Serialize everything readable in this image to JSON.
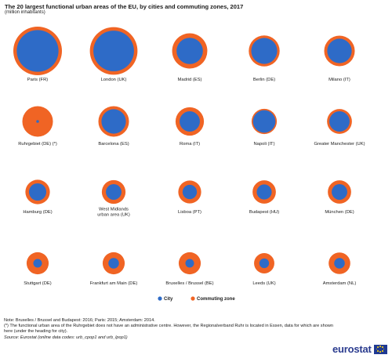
{
  "title": "The 20 largest functional urban areas of the EU, by cities and commuting  zones, 2017",
  "subtitle": "(million inhabitants)",
  "colors": {
    "city": "#2E6BC7",
    "commuting": "#F06424"
  },
  "chart_data": {
    "type": "bubble",
    "title": "The 20 largest functional urban areas of the EU, by cities and commuting  zones, 2017",
    "unit": "million inhabitants",
    "legend": [
      "City",
      "Commuting zone"
    ],
    "legend_position": "bottom",
    "grid": false,
    "areas": [
      {
        "name": "Paris (FR)",
        "total": 12.6,
        "city": 9.3
      },
      {
        "name": "London (UK)",
        "total": 12.1,
        "city": 8.8
      },
      {
        "name": "Madrid (ES)",
        "total": 6.6,
        "city": 3.7
      },
      {
        "name": "Berlin (DE)",
        "total": 5.1,
        "city": 3.6
      },
      {
        "name": "Milano (IT)",
        "total": 5.0,
        "city": 3.2
      },
      {
        "name": "Ruhrgebiet (DE) (*)",
        "total": 5.0,
        "city": 0.04
      },
      {
        "name": "Barcelona (ES)",
        "total": 5.0,
        "city": 3.2
      },
      {
        "name": "Roma (IT)",
        "total": 4.3,
        "city": 2.2
      },
      {
        "name": "Napoli (IT)",
        "total": 3.4,
        "city": 2.7
      },
      {
        "name": "Greater Manchester (UK)",
        "total": 3.3,
        "city": 2.2
      },
      {
        "name": "Hamburg (DE)",
        "total": 3.2,
        "city": 1.6
      },
      {
        "name": "West Midlands urban area (UK)",
        "total": 3.0,
        "city": 1.3
      },
      {
        "name": "Lisboa (PT)",
        "total": 2.8,
        "city": 1.1
      },
      {
        "name": "Budapest (HU)",
        "total": 2.9,
        "city": 1.2
      },
      {
        "name": "München (DE)",
        "total": 2.9,
        "city": 1.3
      },
      {
        "name": "Stuttgart (DE)",
        "total": 2.6,
        "city": 0.4
      },
      {
        "name": "Frankfurt am Main (DE)",
        "total": 2.6,
        "city": 0.6
      },
      {
        "name": "Bruxelles / Brussel (BE)",
        "total": 2.6,
        "city": 0.4
      },
      {
        "name": "Leeds (UK)",
        "total": 2.2,
        "city": 0.5
      },
      {
        "name": "Amsterdam (NL)",
        "total": 2.5,
        "city": 0.6
      }
    ]
  },
  "notes": {
    "line1": "Note: Bruxelles / Brussel and Budapest: 2016; Paris: 2015; Amsterdam: 2014.",
    "line2": "(*) The functional urban area of the Ruhrgebiet does not have an administrative centre. However, the Regionalverband Ruhr is located in Essen, data for which are shown here (under the heading for city).",
    "source": "Source: Eurostat (online data codes: urb_cpop1 and urb_lpop1)"
  },
  "logo": {
    "text": "eurostat",
    "icon": "eu-flag-icon"
  }
}
